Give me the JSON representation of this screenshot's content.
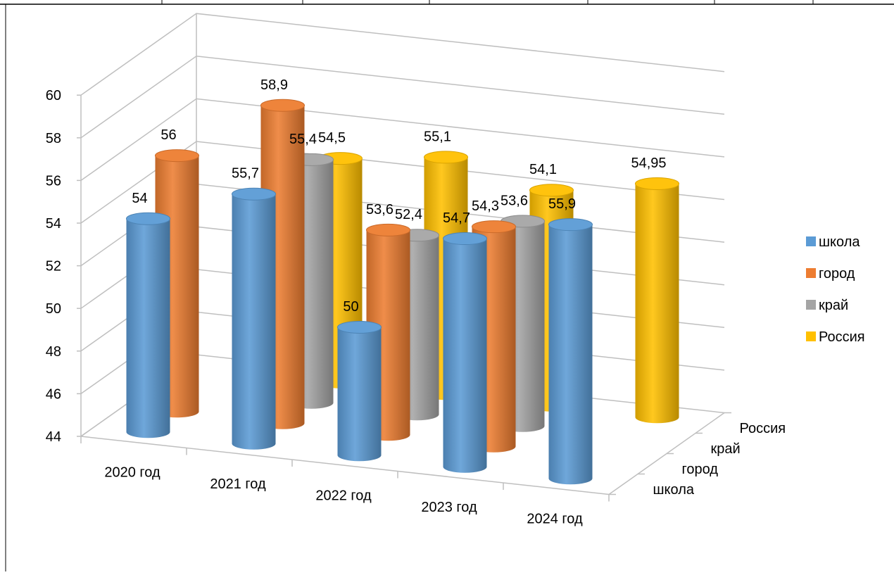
{
  "chart_data": {
    "type": "bar",
    "subtype": "3d-cylinder",
    "title": "",
    "categories": [
      "2020 год",
      "2021 год",
      "2022 год",
      "2023 год",
      "2024 год"
    ],
    "series": [
      {
        "name": "школа",
        "color": "#5B9BD5",
        "values": [
          54,
          55.7,
          50,
          54.7,
          55.9
        ],
        "labels": [
          "54",
          "55,7",
          "50",
          "54,7",
          "55,9"
        ]
      },
      {
        "name": "город",
        "color": "#ED7D31",
        "values": [
          56,
          58.9,
          53.6,
          54.3,
          null
        ],
        "labels": [
          "56",
          "58,9",
          "53,6",
          "54,3",
          ""
        ]
      },
      {
        "name": "край",
        "color": "#A5A5A5",
        "values": [
          null,
          55.4,
          52.4,
          53.6,
          null
        ],
        "labels": [
          "",
          "55,4",
          "52,4",
          "53,6",
          ""
        ]
      },
      {
        "name": "Россия",
        "color": "#FFC000",
        "values": [
          null,
          54.5,
          55.1,
          54.1,
          54.95
        ],
        "labels": [
          "",
          "54,5",
          "55,1",
          "54,1",
          "54,95"
        ]
      }
    ],
    "y_ticks": [
      "44",
      "46",
      "48",
      "50",
      "52",
      "54",
      "56",
      "58",
      "60"
    ],
    "depth_labels": [
      "школа",
      "город",
      "край",
      "Россия"
    ],
    "ylim": [
      44,
      60
    ],
    "grid": true,
    "legend_position": "right",
    "legend": [
      "школа",
      "город",
      "край",
      "Россия"
    ]
  }
}
